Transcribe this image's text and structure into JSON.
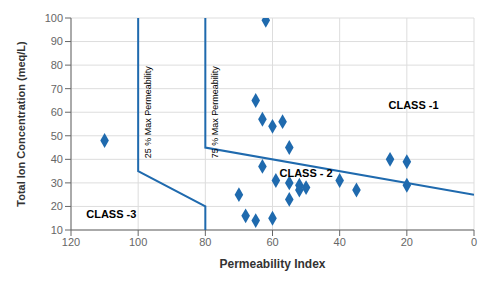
{
  "chart_data": {
    "type": "scatter",
    "xlabel": "Permeability Index",
    "ylabel": "Total Ion Concentration (meq/L)",
    "xlim": [
      120,
      0
    ],
    "ylim": [
      10,
      100
    ],
    "xticks": [
      120,
      100,
      80,
      60,
      40,
      20,
      0
    ],
    "yticks": [
      10,
      20,
      30,
      40,
      50,
      60,
      70,
      80,
      90,
      100
    ],
    "grid": true,
    "series": [
      {
        "type": "line",
        "color": "#1f6aae",
        "x": [
          80,
          80,
          0
        ],
        "values": [
          100,
          45,
          25
        ]
      },
      {
        "type": "line",
        "color": "#1f6aae",
        "x": [
          100,
          100,
          80,
          80
        ],
        "values": [
          100,
          35,
          20,
          10
        ]
      },
      {
        "type": "scatter",
        "color": "#1f6aae",
        "marker": "diamond",
        "x": [
          110,
          62,
          63,
          60,
          57,
          55,
          65,
          63,
          59,
          55,
          52,
          50,
          52,
          55,
          60,
          65,
          68,
          70,
          40,
          35,
          25,
          20,
          20
        ],
        "values": [
          48,
          99,
          57,
          54,
          56,
          45,
          65,
          37,
          31,
          30,
          29,
          28,
          27,
          23,
          15,
          14,
          16,
          25,
          31,
          27,
          40,
          39,
          29
        ]
      }
    ],
    "annotations": [
      {
        "text": "25 % Max Permeability",
        "x": 97,
        "y": 60
      },
      {
        "text": "75 % Max Permeability",
        "x": 77,
        "y": 60
      },
      {
        "text": "CLASS -1",
        "x": 18,
        "y": 63
      },
      {
        "text": "CLASS - 2",
        "x": 50,
        "y": 34
      },
      {
        "text": "CLASS -3",
        "x": 108,
        "y": 17
      }
    ]
  }
}
